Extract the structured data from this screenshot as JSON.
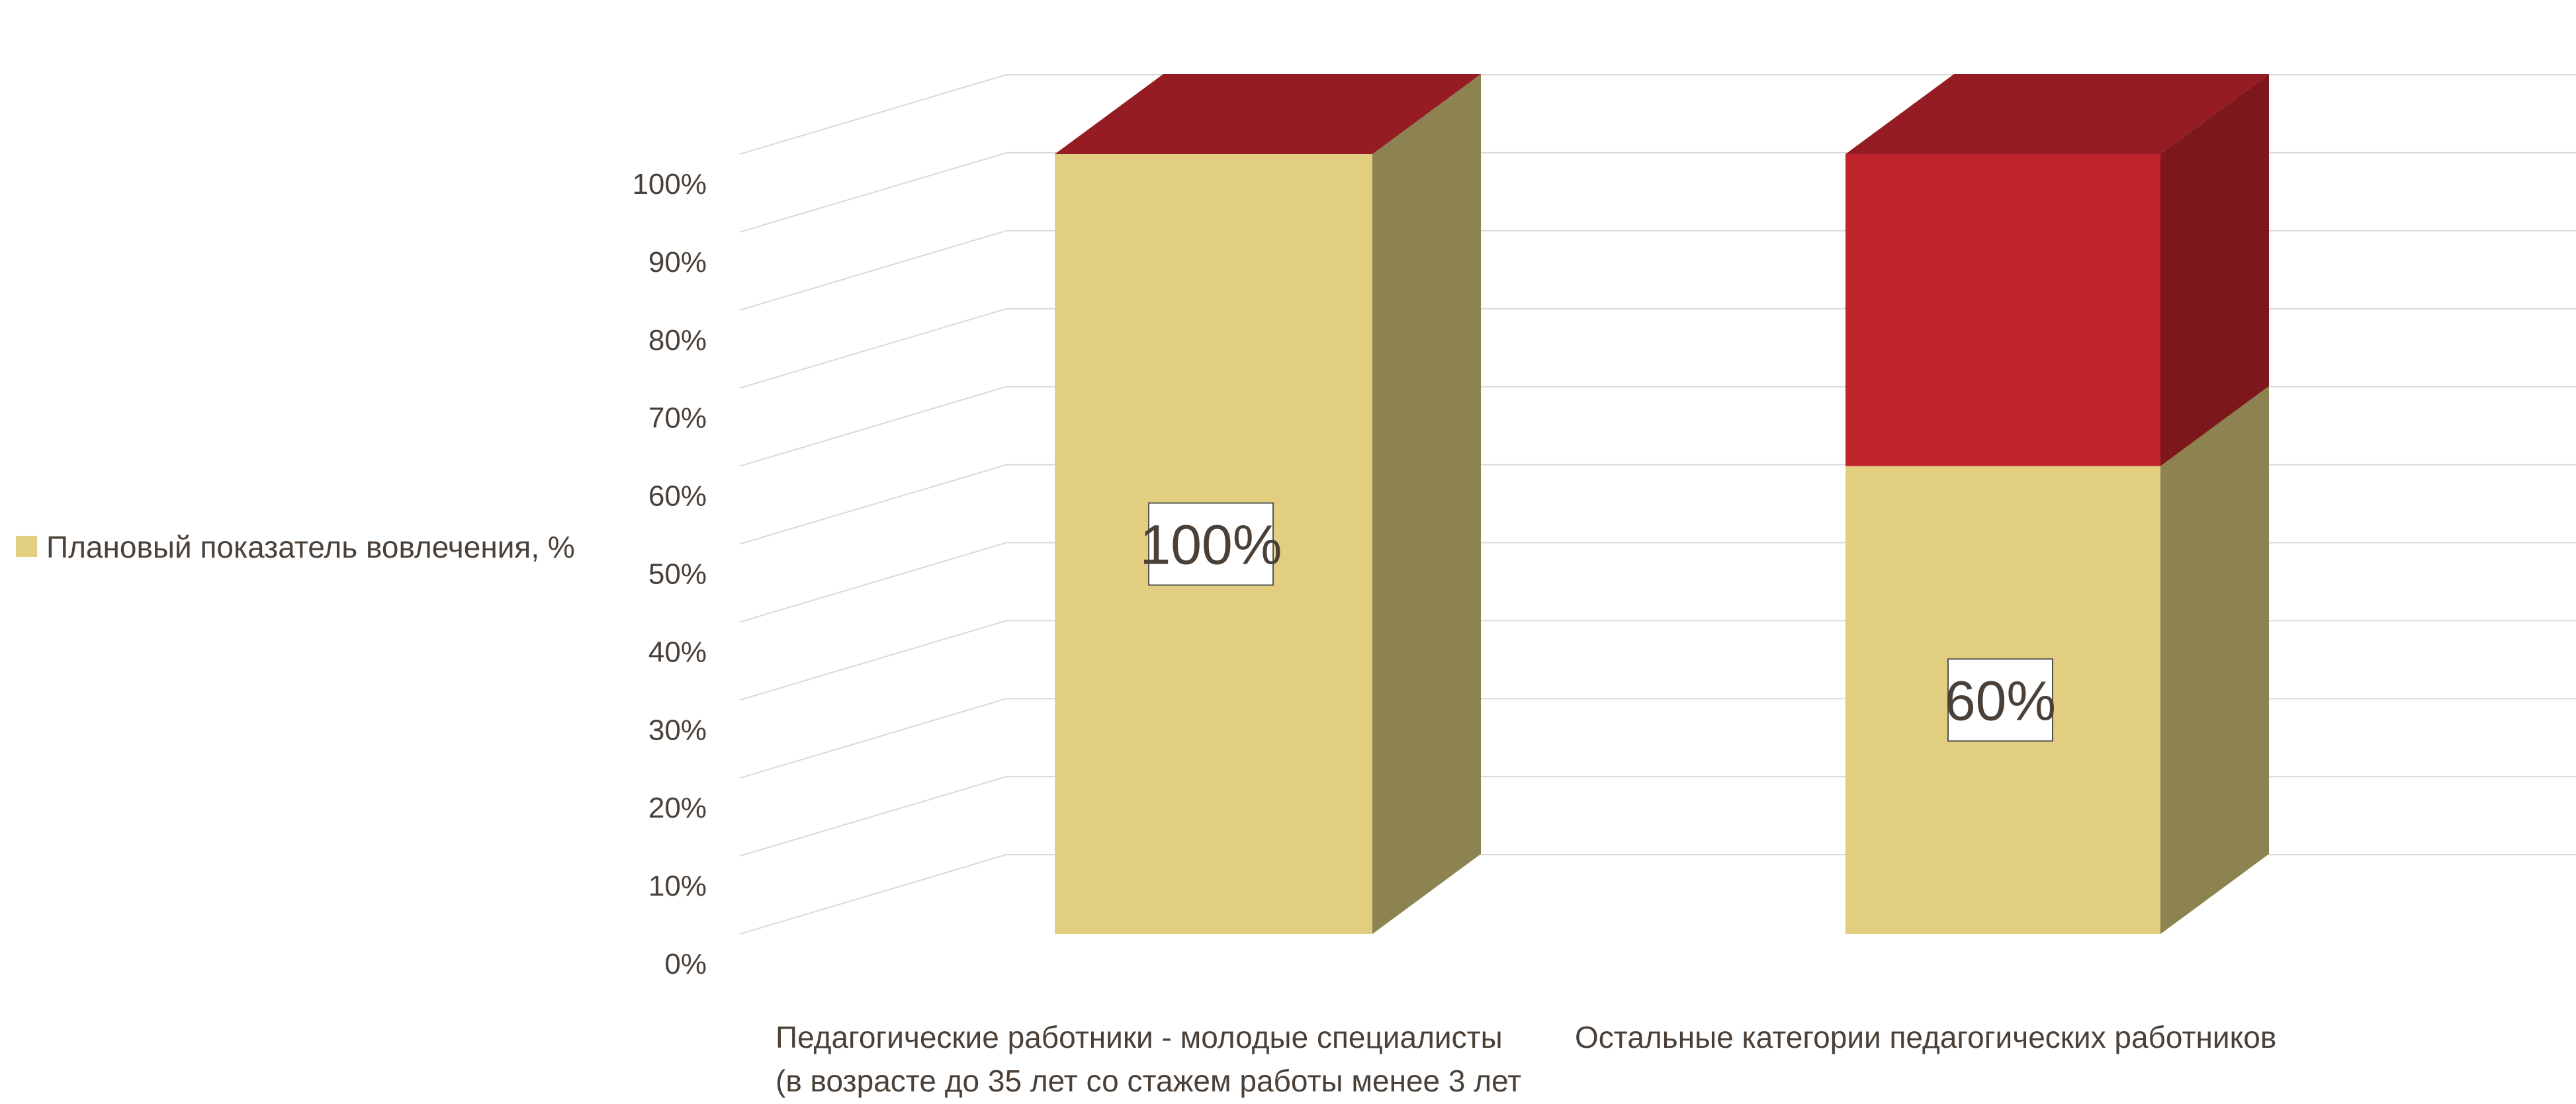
{
  "chart_data": {
    "type": "bar",
    "variant": "3d-stacked-column",
    "title": "",
    "xlabel": "",
    "ylabel": "",
    "ylim": [
      0,
      100
    ],
    "yticks": [
      "0%",
      "10%",
      "20%",
      "30%",
      "40%",
      "50%",
      "60%",
      "70%",
      "80%",
      "90%",
      "100%"
    ],
    "grid": true,
    "legend_position": "left",
    "categories": [
      [
        "Педагогические работники - молодые специалисты",
        "(в возрасте до 35 лет со стажем работы менее 3 лет"
      ],
      [
        "Остальные категории педагогических работников"
      ]
    ],
    "series": [
      {
        "name": "Плановый показатель вовлечения, %",
        "values": [
          100,
          60
        ],
        "labels": [
          "100%",
          "60%"
        ],
        "color": "#e2ce80",
        "side_color": "#8c8350",
        "in_legend": true
      },
      {
        "values": [
          0,
          40
        ],
        "color": "#c0242d",
        "side_color": "#7c171b",
        "top_color": "#941c22",
        "in_legend": false
      }
    ]
  }
}
